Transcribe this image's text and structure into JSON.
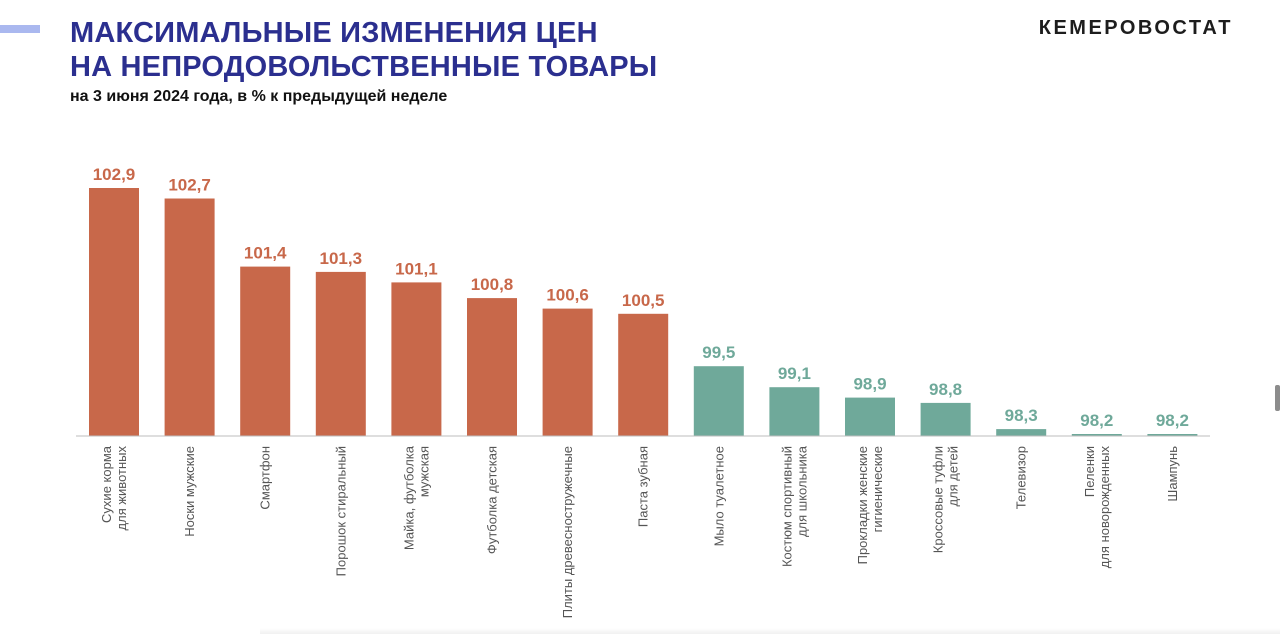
{
  "header": {
    "title_line1": "МАКСИМАЛЬНЫЕ ИЗМЕНЕНИЯ ЦЕН",
    "title_line2": "НА НЕПРОДОВОЛЬСТВЕННЫЕ ТОВАРЫ",
    "subtitle": "на 3 июня 2024 года, в % к предыдущей неделе",
    "brand": "КЕМЕРОВОСТАТ"
  },
  "colors": {
    "title": "#2b2f8f",
    "increase": "#c8684a",
    "decrease": "#6fa99a",
    "accent": "#aab8ef"
  },
  "chart_data": {
    "type": "bar",
    "title": "",
    "xlabel": "",
    "ylabel": "",
    "baseline": 100,
    "categories": [
      [
        "Сухие корма",
        "для животных"
      ],
      [
        "Носки мужские"
      ],
      [
        "Смартфон"
      ],
      [
        "Порошок стиральный"
      ],
      [
        "Майка, футболка",
        "мужская"
      ],
      [
        "Футболка детская"
      ],
      [
        "Плиты древесностружечные"
      ],
      [
        "Паста зубная"
      ],
      [
        "Мыло туалетное"
      ],
      [
        "Костюм спортивный",
        "для школьника"
      ],
      [
        "Прокладки женские",
        "гигиенические"
      ],
      [
        "Кроссовые туфли",
        "для детей"
      ],
      [
        "Телевизор"
      ],
      [
        "Пеленки",
        "для новорожденных"
      ],
      [
        "Шампунь"
      ]
    ],
    "values": [
      102.9,
      102.7,
      101.4,
      101.3,
      101.1,
      100.8,
      100.6,
      100.5,
      99.5,
      99.1,
      98.9,
      98.8,
      98.3,
      98.2,
      98.2
    ],
    "value_labels": [
      "102,9",
      "102,7",
      "101,4",
      "101,3",
      "101,1",
      "100,8",
      "100,6",
      "100,5",
      "99,5",
      "99,1",
      "98,9",
      "98,8",
      "98,3",
      "98,2",
      "98,2"
    ],
    "grid": false,
    "legend": "none"
  }
}
